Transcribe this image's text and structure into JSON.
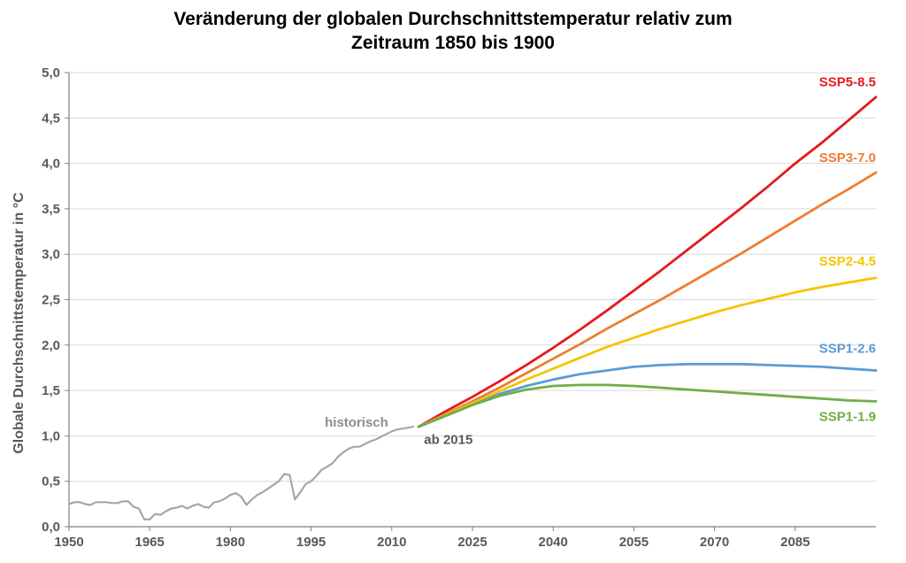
{
  "chart_data": {
    "type": "line",
    "title_lines": [
      "Veränderung der globalen Durchschnittstemperatur relativ zum",
      "Zeitraum 1850 bis 1900"
    ],
    "xlabel": "",
    "ylabel": "Globale  Durchschnittstemperatur  in  °C",
    "xlim": [
      1950,
      2100
    ],
    "ylim": [
      0,
      5
    ],
    "x_ticks": [
      "1950",
      "1965",
      "1980",
      "1995",
      "2010",
      "2025",
      "2040",
      "2055",
      "2070",
      "2085"
    ],
    "y_ticks": [
      "0,0",
      "0,5",
      "1,0",
      "1,5",
      "2,0",
      "2,5",
      "3,0",
      "3,5",
      "4,0",
      "4,5",
      "5,0"
    ],
    "grid": "horizontal",
    "annotations": [
      {
        "text": "historisch",
        "x": 2010,
        "y": 1.1,
        "color": "#8c8c8c"
      },
      {
        "text": "ab 2015",
        "x": 2016,
        "y": 1.05,
        "color": "#595959"
      }
    ],
    "series": [
      {
        "name": "historisch",
        "color": "#a6a6a6",
        "x": [
          1950,
          1951,
          1952,
          1953,
          1954,
          1955,
          1956,
          1957,
          1958,
          1959,
          1960,
          1961,
          1962,
          1963,
          1964,
          1965,
          1966,
          1967,
          1968,
          1969,
          1970,
          1971,
          1972,
          1973,
          1974,
          1975,
          1976,
          1977,
          1978,
          1979,
          1980,
          1981,
          1982,
          1983,
          1984,
          1985,
          1986,
          1987,
          1988,
          1989,
          1990,
          1991,
          1992,
          1993,
          1994,
          1995,
          1996,
          1997,
          1998,
          1999,
          2000,
          2001,
          2002,
          2003,
          2004,
          2005,
          2006,
          2007,
          2008,
          2009,
          2010,
          2011,
          2012,
          2013,
          2014
        ],
        "values": [
          0.25,
          0.27,
          0.27,
          0.25,
          0.24,
          0.27,
          0.27,
          0.27,
          0.26,
          0.26,
          0.28,
          0.28,
          0.22,
          0.2,
          0.08,
          0.08,
          0.14,
          0.13,
          0.17,
          0.2,
          0.21,
          0.23,
          0.2,
          0.23,
          0.25,
          0.22,
          0.21,
          0.27,
          0.28,
          0.31,
          0.35,
          0.37,
          0.33,
          0.24,
          0.3,
          0.35,
          0.38,
          0.42,
          0.46,
          0.5,
          0.58,
          0.57,
          0.3,
          0.38,
          0.47,
          0.5,
          0.56,
          0.63,
          0.66,
          0.7,
          0.77,
          0.82,
          0.86,
          0.88,
          0.88,
          0.91,
          0.94,
          0.96,
          0.99,
          1.02,
          1.05,
          1.07,
          1.08,
          1.09,
          1.1
        ]
      },
      {
        "name": "SSP5-8.5",
        "color": "#e31a1c",
        "x": [
          2015,
          2020,
          2025,
          2030,
          2035,
          2040,
          2045,
          2050,
          2055,
          2060,
          2065,
          2070,
          2075,
          2080,
          2085,
          2090,
          2095,
          2100
        ],
        "values": [
          1.1,
          1.27,
          1.43,
          1.6,
          1.78,
          1.97,
          2.17,
          2.38,
          2.6,
          2.82,
          3.05,
          3.28,
          3.51,
          3.75,
          4.0,
          4.23,
          4.48,
          4.73
        ]
      },
      {
        "name": "SSP3-7.0",
        "color": "#ed7d31",
        "x": [
          2015,
          2020,
          2025,
          2030,
          2035,
          2040,
          2045,
          2050,
          2055,
          2060,
          2065,
          2070,
          2075,
          2080,
          2085,
          2090,
          2095,
          2100
        ],
        "values": [
          1.1,
          1.24,
          1.38,
          1.53,
          1.69,
          1.85,
          2.01,
          2.18,
          2.34,
          2.5,
          2.67,
          2.84,
          3.01,
          3.19,
          3.37,
          3.55,
          3.72,
          3.9
        ]
      },
      {
        "name": "SSP2-4.5",
        "color": "#f5c400",
        "x": [
          2015,
          2020,
          2025,
          2030,
          2035,
          2040,
          2045,
          2050,
          2055,
          2060,
          2065,
          2070,
          2075,
          2080,
          2085,
          2090,
          2095,
          2100
        ],
        "values": [
          1.1,
          1.23,
          1.36,
          1.49,
          1.62,
          1.74,
          1.86,
          1.98,
          2.08,
          2.18,
          2.27,
          2.36,
          2.44,
          2.51,
          2.58,
          2.64,
          2.69,
          2.74
        ]
      },
      {
        "name": "SSP1-2.6",
        "color": "#5b9bd5",
        "x": [
          2015,
          2020,
          2025,
          2030,
          2035,
          2040,
          2045,
          2050,
          2055,
          2060,
          2065,
          2070,
          2075,
          2080,
          2085,
          2090,
          2095,
          2100
        ],
        "values": [
          1.1,
          1.22,
          1.34,
          1.46,
          1.55,
          1.62,
          1.68,
          1.72,
          1.76,
          1.78,
          1.79,
          1.79,
          1.79,
          1.78,
          1.77,
          1.76,
          1.74,
          1.72
        ]
      },
      {
        "name": "SSP1-1.9",
        "color": "#70ad47",
        "x": [
          2015,
          2020,
          2025,
          2030,
          2035,
          2040,
          2045,
          2050,
          2055,
          2060,
          2065,
          2070,
          2075,
          2080,
          2085,
          2090,
          2095,
          2100
        ],
        "values": [
          1.1,
          1.22,
          1.34,
          1.44,
          1.51,
          1.55,
          1.56,
          1.56,
          1.55,
          1.53,
          1.51,
          1.49,
          1.47,
          1.45,
          1.43,
          1.41,
          1.39,
          1.38
        ]
      }
    ]
  }
}
